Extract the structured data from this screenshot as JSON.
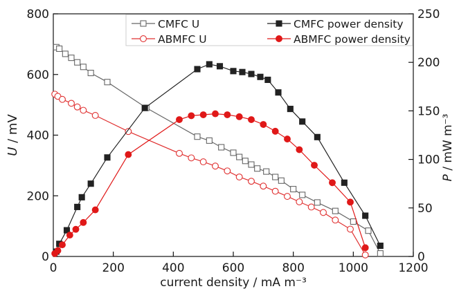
{
  "chart_data": {
    "type": "line",
    "title": "",
    "xlabel": "current density / mA m⁻³",
    "ylabel_left": "U / mV",
    "ylabel_left_var": "U",
    "ylabel_left_unit": " / mV",
    "ylabel_right": "P / mW m⁻³",
    "ylabel_right_var": "P",
    "ylabel_right_unit": " / mW m⁻³",
    "xlim": [
      0,
      1200
    ],
    "ylim_left": [
      0,
      800
    ],
    "ylim_right": [
      0,
      250
    ],
    "xticks": [
      0,
      200,
      400,
      600,
      800,
      1000,
      1200
    ],
    "yticks_left": [
      0,
      200,
      400,
      600,
      800
    ],
    "yticks_right": [
      0,
      50,
      100,
      150,
      200,
      250
    ],
    "grid": false,
    "legend_position": "top",
    "series": [
      {
        "name": "CMFC U",
        "axis": "left",
        "color": "#666666",
        "marker": "square-open",
        "points": [
          [
            10,
            690
          ],
          [
            20,
            685
          ],
          [
            40,
            668
          ],
          [
            60,
            655
          ],
          [
            80,
            640
          ],
          [
            100,
            625
          ],
          [
            125,
            605
          ],
          [
            180,
            575
          ],
          [
            310,
            490
          ],
          [
            480,
            395
          ],
          [
            520,
            382
          ],
          [
            560,
            360
          ],
          [
            600,
            342
          ],
          [
            620,
            328
          ],
          [
            640,
            315
          ],
          [
            660,
            303
          ],
          [
            680,
            290
          ],
          [
            710,
            280
          ],
          [
            740,
            262
          ],
          [
            760,
            250
          ],
          [
            800,
            222
          ],
          [
            830,
            203
          ],
          [
            880,
            178
          ],
          [
            940,
            150
          ],
          [
            1000,
            115
          ],
          [
            1050,
            85
          ],
          [
            1090,
            10
          ]
        ]
      },
      {
        "name": "ABMFC U",
        "axis": "left",
        "color": "#e03030",
        "marker": "circle-open",
        "points": [
          [
            5,
            535
          ],
          [
            15,
            528
          ],
          [
            30,
            518
          ],
          [
            60,
            505
          ],
          [
            80,
            493
          ],
          [
            100,
            482
          ],
          [
            140,
            465
          ],
          [
            250,
            412
          ],
          [
            420,
            340
          ],
          [
            460,
            325
          ],
          [
            500,
            312
          ],
          [
            540,
            298
          ],
          [
            580,
            282
          ],
          [
            620,
            262
          ],
          [
            660,
            248
          ],
          [
            700,
            232
          ],
          [
            740,
            215
          ],
          [
            780,
            198
          ],
          [
            820,
            180
          ],
          [
            860,
            163
          ],
          [
            900,
            145
          ],
          [
            940,
            120
          ],
          [
            990,
            90
          ],
          [
            1040,
            5
          ]
        ]
      },
      {
        "name": "CMFC power density",
        "axis": "right",
        "color": "#222222",
        "marker": "square-filled",
        "points": [
          [
            10,
            5
          ],
          [
            20,
            13
          ],
          [
            45,
            27
          ],
          [
            80,
            51
          ],
          [
            95,
            61
          ],
          [
            125,
            75
          ],
          [
            180,
            102
          ],
          [
            305,
            153
          ],
          [
            480,
            193
          ],
          [
            520,
            198
          ],
          [
            555,
            196
          ],
          [
            600,
            191
          ],
          [
            630,
            190
          ],
          [
            660,
            188
          ],
          [
            690,
            185
          ],
          [
            715,
            182
          ],
          [
            750,
            169
          ],
          [
            790,
            152
          ],
          [
            830,
            139
          ],
          [
            880,
            123
          ],
          [
            970,
            76
          ],
          [
            1040,
            42
          ],
          [
            1090,
            11
          ]
        ]
      },
      {
        "name": "ABMFC power density",
        "axis": "right",
        "color": "#e01818",
        "marker": "circle-filled",
        "points": [
          [
            5,
            3
          ],
          [
            15,
            6
          ],
          [
            30,
            12
          ],
          [
            55,
            22
          ],
          [
            75,
            28
          ],
          [
            100,
            35
          ],
          [
            140,
            48
          ],
          [
            250,
            105
          ],
          [
            420,
            141
          ],
          [
            460,
            145
          ],
          [
            500,
            146
          ],
          [
            540,
            147
          ],
          [
            580,
            146
          ],
          [
            620,
            144
          ],
          [
            660,
            141
          ],
          [
            700,
            136
          ],
          [
            740,
            129
          ],
          [
            780,
            121
          ],
          [
            820,
            110
          ],
          [
            870,
            94
          ],
          [
            930,
            76
          ],
          [
            990,
            56
          ],
          [
            1040,
            9
          ]
        ]
      }
    ]
  }
}
